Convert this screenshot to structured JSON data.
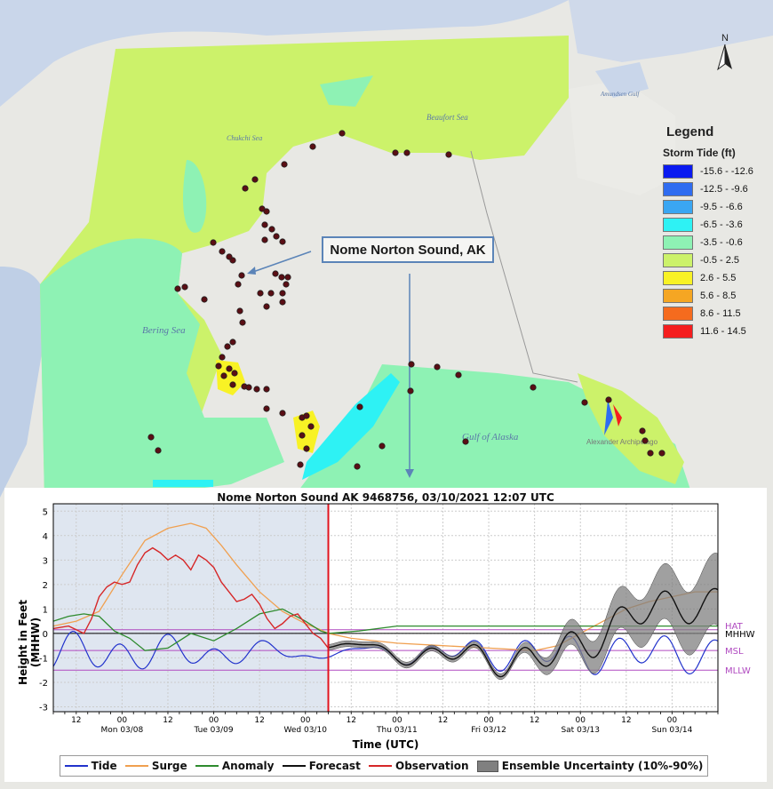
{
  "map": {
    "legend_title": "Legend",
    "legend_subtitle": "Storm Tide (ft)",
    "legend_items": [
      {
        "label": "-15.6 - -12.6",
        "color": "#0a1af0"
      },
      {
        "label": "-12.5 - -9.6",
        "color": "#2f6cf0"
      },
      {
        "label": "-9.5 - -6.6",
        "color": "#3aa6f2"
      },
      {
        "label": "-6.5 - -3.6",
        "color": "#2ef2f4"
      },
      {
        "label": "-3.5 - -0.6",
        "color": "#8ef2b4"
      },
      {
        "label": "-0.5 - 2.5",
        "color": "#ccf26a"
      },
      {
        "label": "2.6 - 5.5",
        "color": "#f8f225"
      },
      {
        "label": "5.6 - 8.5",
        "color": "#f5a623"
      },
      {
        "label": "8.6 - 11.5",
        "color": "#f56b1e"
      },
      {
        "label": "11.6 - 14.5",
        "color": "#f51e1e"
      }
    ],
    "callout_label": "Nome Norton Sound, AK",
    "north_label": "N",
    "place_labels": {
      "bering": "Bering Sea",
      "gulf": "Gulf of Alaska",
      "beaufort": "Beaufort Sea",
      "chukchi": "Chukchi Sea",
      "amundsen": "Amundsen Gulf",
      "alexander": "Alexander Archipelago"
    }
  },
  "chart": {
    "title": "Nome Norton Sound AK 9468756, 03/10/2021 12:07 UTC",
    "ylabel": "Height in Feet (MHHW)",
    "xlabel": "Time (UTC)",
    "datum_labels": {
      "hat": "HAT",
      "mhhw": "MHHW",
      "msl": "MSL",
      "mllw": "MLLW"
    },
    "legend": {
      "tide": "Tide",
      "surge": "Surge",
      "anomaly": "Anomaly",
      "forecast": "Forecast",
      "observation": "Observation",
      "ensemble": "Ensemble Uncertainty (10%-90%)"
    },
    "colors": {
      "tide": "#2233cc",
      "surge": "#f0a050",
      "anomaly": "#2e8b2e",
      "forecast": "#111111",
      "observation": "#d62728",
      "ensemble": "#808080",
      "datum": "#b04ac0",
      "nowline": "#e0141e",
      "hindcast_bg": "#dfe6f0"
    }
  },
  "chart_data": {
    "type": "line",
    "title": "Nome Norton Sound AK 9468756, 03/10/2021 12:07 UTC",
    "xlabel": "Time (UTC)",
    "ylabel": "Height in Feet (MHHW)",
    "ylim": [
      -3.2,
      5.3
    ],
    "xlim_hours": [
      0,
      174
    ],
    "yticks": [
      -3,
      -2,
      -1,
      0,
      1,
      2,
      3,
      4,
      5
    ],
    "xticks": [
      {
        "h": 6,
        "label": "12"
      },
      {
        "h": 18,
        "label": "00"
      },
      {
        "h": 30,
        "label": "12"
      },
      {
        "h": 42,
        "label": "00"
      },
      {
        "h": 54,
        "label": "12"
      },
      {
        "h": 66,
        "label": "00"
      },
      {
        "h": 78,
        "label": "12"
      },
      {
        "h": 90,
        "label": "00"
      },
      {
        "h": 102,
        "label": "12"
      },
      {
        "h": 114,
        "label": "00"
      },
      {
        "h": 126,
        "label": "12"
      },
      {
        "h": 138,
        "label": "00"
      },
      {
        "h": 150,
        "label": "12"
      },
      {
        "h": 162,
        "label": "00"
      }
    ],
    "day_labels": [
      {
        "h": 18,
        "label": "Mon 03/08"
      },
      {
        "h": 42,
        "label": "Tue 03/09"
      },
      {
        "h": 66,
        "label": "Wed 03/10"
      },
      {
        "h": 90,
        "label": "Thu 03/11"
      },
      {
        "h": 114,
        "label": "Fri 03/12"
      },
      {
        "h": 138,
        "label": "Sat 03/13"
      },
      {
        "h": 162,
        "label": "Sun 03/14"
      }
    ],
    "now_hour": 72,
    "datums": {
      "hat": 0.15,
      "mhhw": 0.0,
      "msl": -0.7,
      "mllw": -1.5
    },
    "series": [
      {
        "name": "Surge",
        "x": [
          0,
          6,
          12,
          18,
          24,
          30,
          36,
          40,
          44,
          48,
          54,
          60,
          66,
          70,
          72,
          78,
          90,
          102,
          114,
          126,
          132,
          138,
          144,
          150,
          156,
          162,
          168,
          174
        ],
        "y": [
          0.3,
          0.5,
          0.9,
          2.4,
          3.8,
          4.3,
          4.5,
          4.3,
          3.6,
          2.8,
          1.7,
          0.9,
          0.4,
          0.15,
          0.0,
          -0.2,
          -0.4,
          -0.5,
          -0.6,
          -0.7,
          -0.5,
          0.0,
          0.5,
          1.0,
          1.3,
          1.5,
          1.7,
          1.7
        ]
      },
      {
        "name": "Anomaly",
        "x": [
          0,
          4,
          8,
          12,
          16,
          20,
          24,
          30,
          36,
          42,
          48,
          54,
          60,
          66,
          70,
          72,
          80,
          90,
          102,
          114,
          126,
          138,
          150,
          162,
          174
        ],
        "y": [
          0.5,
          0.7,
          0.8,
          0.7,
          0.1,
          -0.2,
          -0.7,
          -0.6,
          0.0,
          -0.3,
          0.2,
          0.8,
          1.0,
          0.5,
          0.1,
          0.0,
          0.1,
          0.3,
          0.3,
          0.3,
          0.3,
          0.3,
          0.3,
          0.3,
          0.3
        ]
      },
      {
        "name": "Observation",
        "x": [
          0,
          4,
          8,
          10,
          12,
          14,
          16,
          18,
          20,
          22,
          24,
          26,
          28,
          30,
          32,
          34,
          36,
          38,
          40,
          42,
          44,
          46,
          48,
          50,
          52,
          54,
          56,
          58,
          60,
          62,
          64,
          66,
          68,
          70,
          72
        ],
        "y": [
          0.2,
          0.3,
          0.0,
          0.6,
          1.5,
          1.9,
          2.1,
          2.0,
          2.1,
          2.8,
          3.3,
          3.5,
          3.3,
          3.0,
          3.2,
          3.0,
          2.6,
          3.2,
          3.0,
          2.7,
          2.1,
          1.7,
          1.3,
          1.4,
          1.6,
          1.2,
          0.6,
          0.2,
          0.4,
          0.7,
          0.8,
          0.4,
          0.0,
          -0.2,
          -0.6
        ]
      },
      {
        "name": "Tide",
        "x_step": 1,
        "y_model": "semidiurnal"
      },
      {
        "name": "Forecast",
        "x_start": 72,
        "y_model": "tide+surge"
      },
      {
        "name": "Ensemble Uncertainty (10%-90%)",
        "x_start": 72,
        "y_model": "band"
      }
    ]
  }
}
